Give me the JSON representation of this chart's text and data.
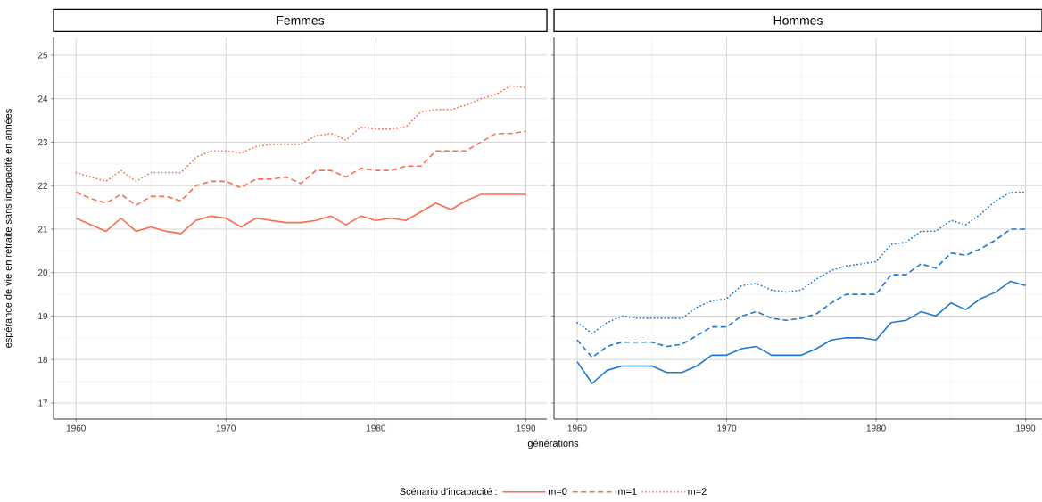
{
  "chart_data": [
    {
      "type": "line",
      "title": "Femmes",
      "xlabel": "générations",
      "ylabel": "espérance de vie en retraite sans incapacité en années",
      "legend_title": "Scénario d'incapacité :",
      "legend": "bottom",
      "grid": true,
      "x": [
        1960,
        1961,
        1962,
        1963,
        1964,
        1965,
        1966,
        1967,
        1968,
        1969,
        1970,
        1971,
        1972,
        1973,
        1974,
        1975,
        1976,
        1977,
        1978,
        1979,
        1980,
        1981,
        1982,
        1983,
        1984,
        1985,
        1986,
        1987,
        1988,
        1989,
        1990
      ],
      "xlim": [
        1958.5,
        1991.4
      ],
      "xticks": [
        1960,
        1970,
        1980,
        1990
      ],
      "ylim": [
        16.63,
        25.41
      ],
      "yticks": [
        17,
        18,
        19,
        20,
        21,
        22,
        23,
        24,
        25
      ],
      "series": [
        {
          "name": "m=0",
          "color": "#fc6c4f",
          "line_style": "solid",
          "values": [
            21.25,
            21.1,
            20.95,
            21.25,
            20.95,
            21.05,
            20.95,
            20.9,
            21.2,
            21.3,
            21.25,
            21.05,
            21.25,
            21.2,
            21.15,
            21.15,
            21.2,
            21.3,
            21.1,
            21.3,
            21.2,
            21.25,
            21.2,
            21.4,
            21.6,
            21.45,
            21.65,
            21.8,
            21.8,
            21.8,
            21.8
          ]
        },
        {
          "name": "m=1",
          "color": "#fc6c4f",
          "line_style": "dashed",
          "values": [
            21.85,
            21.7,
            21.6,
            21.8,
            21.55,
            21.75,
            21.75,
            21.65,
            22.0,
            22.1,
            22.1,
            21.95,
            22.15,
            22.15,
            22.2,
            22.05,
            22.35,
            22.35,
            22.2,
            22.4,
            22.35,
            22.35,
            22.45,
            22.45,
            22.8,
            22.8,
            22.8,
            23.0,
            23.2,
            23.2,
            23.25
          ]
        },
        {
          "name": "m=2",
          "color": "#fc6c4f",
          "line_style": "dotted",
          "values": [
            22.3,
            22.2,
            22.1,
            22.35,
            22.1,
            22.3,
            22.3,
            22.3,
            22.65,
            22.8,
            22.8,
            22.75,
            22.9,
            22.95,
            22.95,
            22.95,
            23.15,
            23.2,
            23.05,
            23.35,
            23.3,
            23.3,
            23.35,
            23.7,
            23.75,
            23.75,
            23.85,
            24.0,
            24.1,
            24.3,
            24.25
          ]
        }
      ]
    },
    {
      "type": "line",
      "title": "Hommes",
      "grid": true,
      "tick_labels": "x",
      "x": [
        1960,
        1961,
        1962,
        1963,
        1964,
        1965,
        1966,
        1967,
        1968,
        1969,
        1970,
        1971,
        1972,
        1973,
        1974,
        1975,
        1976,
        1977,
        1978,
        1979,
        1980,
        1981,
        1982,
        1983,
        1984,
        1985,
        1986,
        1987,
        1988,
        1989,
        1990
      ],
      "xlim": [
        1958.45,
        1991.1
      ],
      "xticks": [
        1960,
        1970,
        1980,
        1990
      ],
      "ylim": [
        16.63,
        25.41
      ],
      "yticks": [
        17,
        18,
        19,
        20,
        21,
        22,
        23,
        24,
        25
      ],
      "series": [
        {
          "color": "#1f78d1",
          "line_style": "solid",
          "values": [
            17.95,
            17.45,
            17.75,
            17.85,
            17.85,
            17.85,
            17.7,
            17.7,
            17.85,
            18.1,
            18.1,
            18.25,
            18.3,
            18.1,
            18.1,
            18.1,
            18.25,
            18.45,
            18.5,
            18.5,
            18.45,
            18.85,
            18.9,
            19.1,
            19.0,
            19.3,
            19.15,
            19.4,
            19.55,
            19.8,
            19.7
          ]
        },
        {
          "color": "#1f78d1",
          "line_style": "dashed",
          "values": [
            18.45,
            18.05,
            18.3,
            18.4,
            18.4,
            18.4,
            18.3,
            18.35,
            18.55,
            18.75,
            18.75,
            19.0,
            19.1,
            18.95,
            18.9,
            18.95,
            19.05,
            19.3,
            19.5,
            19.5,
            19.5,
            19.95,
            19.95,
            20.2,
            20.1,
            20.45,
            20.4,
            20.55,
            20.75,
            21.0,
            21.0
          ]
        },
        {
          "color": "#1f78d1",
          "line_style": "dotted",
          "values": [
            18.85,
            18.6,
            18.85,
            19.0,
            18.95,
            18.95,
            18.95,
            18.95,
            19.2,
            19.35,
            19.4,
            19.7,
            19.75,
            19.6,
            19.55,
            19.6,
            19.85,
            20.05,
            20.15,
            20.2,
            20.25,
            20.65,
            20.7,
            20.95,
            20.95,
            21.2,
            21.1,
            21.35,
            21.65,
            21.85,
            21.85
          ]
        }
      ]
    }
  ]
}
